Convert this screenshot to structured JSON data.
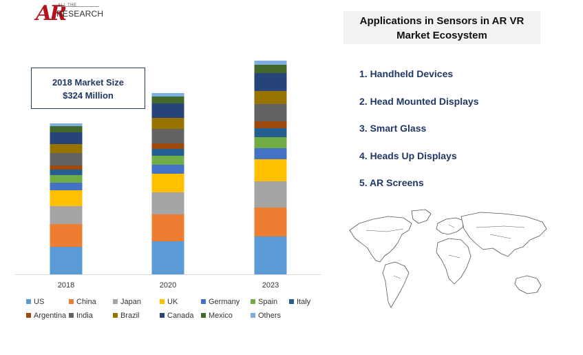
{
  "logo": {
    "mark": "AR",
    "top_text": "ALL THE",
    "bottom_text": "RESEARCH"
  },
  "title": {
    "line1": "Applications in Sensors in AR VR",
    "line2": "Market Ecosystem"
  },
  "callout": {
    "line1": "2018 Market Size",
    "line2": "$324 Million"
  },
  "applications": [
    "1. Handheld Devices",
    "2. Head Mounted Displays",
    "3. Smart Glass",
    "4. Heads Up Displays",
    "5. AR Screens"
  ],
  "chart_data": {
    "type": "bar",
    "stacked": true,
    "categories": [
      "2018",
      "2020",
      "2023"
    ],
    "series": [
      {
        "name": "US",
        "color": "#5b9bd5",
        "values": [
          40,
          48,
          55
        ]
      },
      {
        "name": "China",
        "color": "#ed7d31",
        "values": [
          33,
          39,
          42
        ]
      },
      {
        "name": "Japan",
        "color": "#a5a5a5",
        "values": [
          26,
          32,
          38
        ]
      },
      {
        "name": "UK",
        "color": "#ffc000",
        "values": [
          23,
          27,
          32
        ]
      },
      {
        "name": "Germany",
        "color": "#4472c4",
        "values": [
          11,
          13,
          16
        ]
      },
      {
        "name": "Spain",
        "color": "#70ad47",
        "values": [
          11,
          13,
          16
        ]
      },
      {
        "name": "Italy",
        "color": "#255e91",
        "values": [
          8,
          10,
          13
        ]
      },
      {
        "name": "Argentina",
        "color": "#9e480e",
        "values": [
          6,
          8,
          10
        ]
      },
      {
        "name": "India",
        "color": "#636363",
        "values": [
          18,
          21,
          25
        ]
      },
      {
        "name": "Brazil",
        "color": "#997300",
        "values": [
          13,
          16,
          19
        ]
      },
      {
        "name": "Canada",
        "color": "#264478",
        "values": [
          17,
          21,
          26
        ]
      },
      {
        "name": "Mexico",
        "color": "#43682b",
        "values": [
          9,
          10,
          12
        ]
      },
      {
        "name": "Others",
        "color": "#7cafdd",
        "values": [
          4,
          5,
          6
        ]
      }
    ]
  }
}
